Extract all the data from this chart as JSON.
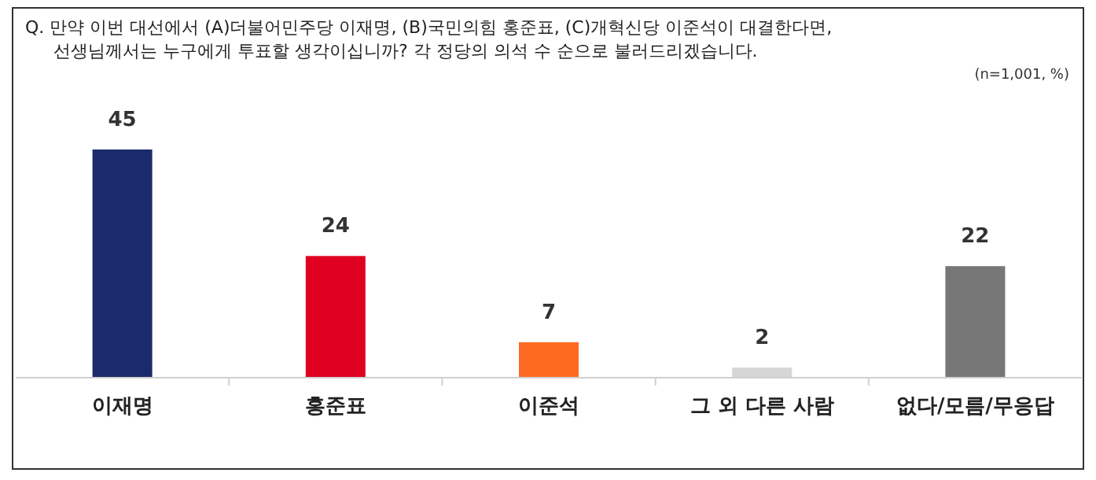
{
  "chart_data": {
    "type": "bar",
    "title": "Q. 만약 이번 대선에서 (A)더불어민주당 이재명, (B)국민의힘 홍준표, (C)개혁신당 이준석이 대결한다면,",
    "subtitle": "선생님께서는 누구에게 투표할 생각이십니까? 각 정당의 의석 수 순으로 불러드리겠습니다.",
    "annotations": [
      "(n=1,001, %)"
    ],
    "categories": [
      "이재명",
      "홍준표",
      "이준석",
      "그 외 다른 사람",
      "없다/모름/무응답"
    ],
    "values": [
      45,
      24,
      7,
      2,
      22
    ],
    "colors": [
      "#1b2a6b",
      "#e00022",
      "#ff6a22",
      "#d6d6d6",
      "#777777"
    ],
    "data_labels": true
  }
}
